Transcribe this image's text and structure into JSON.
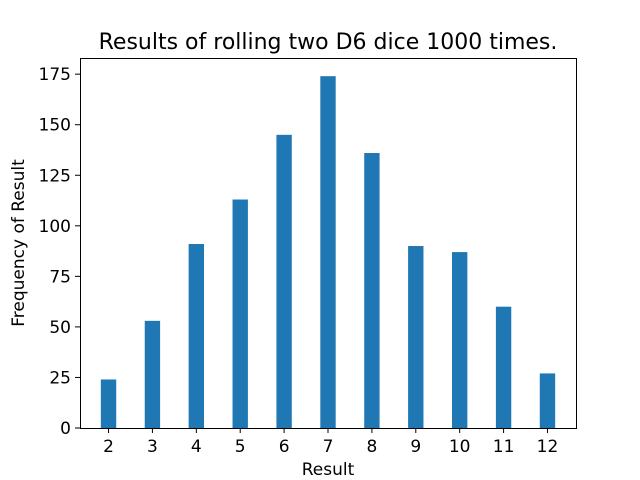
{
  "chart_data": {
    "type": "bar",
    "title": "Results of rolling two D6 dice 1000 times.",
    "xlabel": "Result",
    "ylabel": "Frequency of Result",
    "categories": [
      "2",
      "3",
      "4",
      "5",
      "6",
      "7",
      "8",
      "9",
      "10",
      "11",
      "12"
    ],
    "values": [
      24,
      53,
      91,
      113,
      145,
      174,
      136,
      90,
      87,
      60,
      27
    ],
    "ylim": [
      0,
      183
    ],
    "yticks": [
      0,
      25,
      50,
      75,
      100,
      125,
      150,
      175
    ],
    "grid": false,
    "bar_color": "#1f77b4"
  }
}
